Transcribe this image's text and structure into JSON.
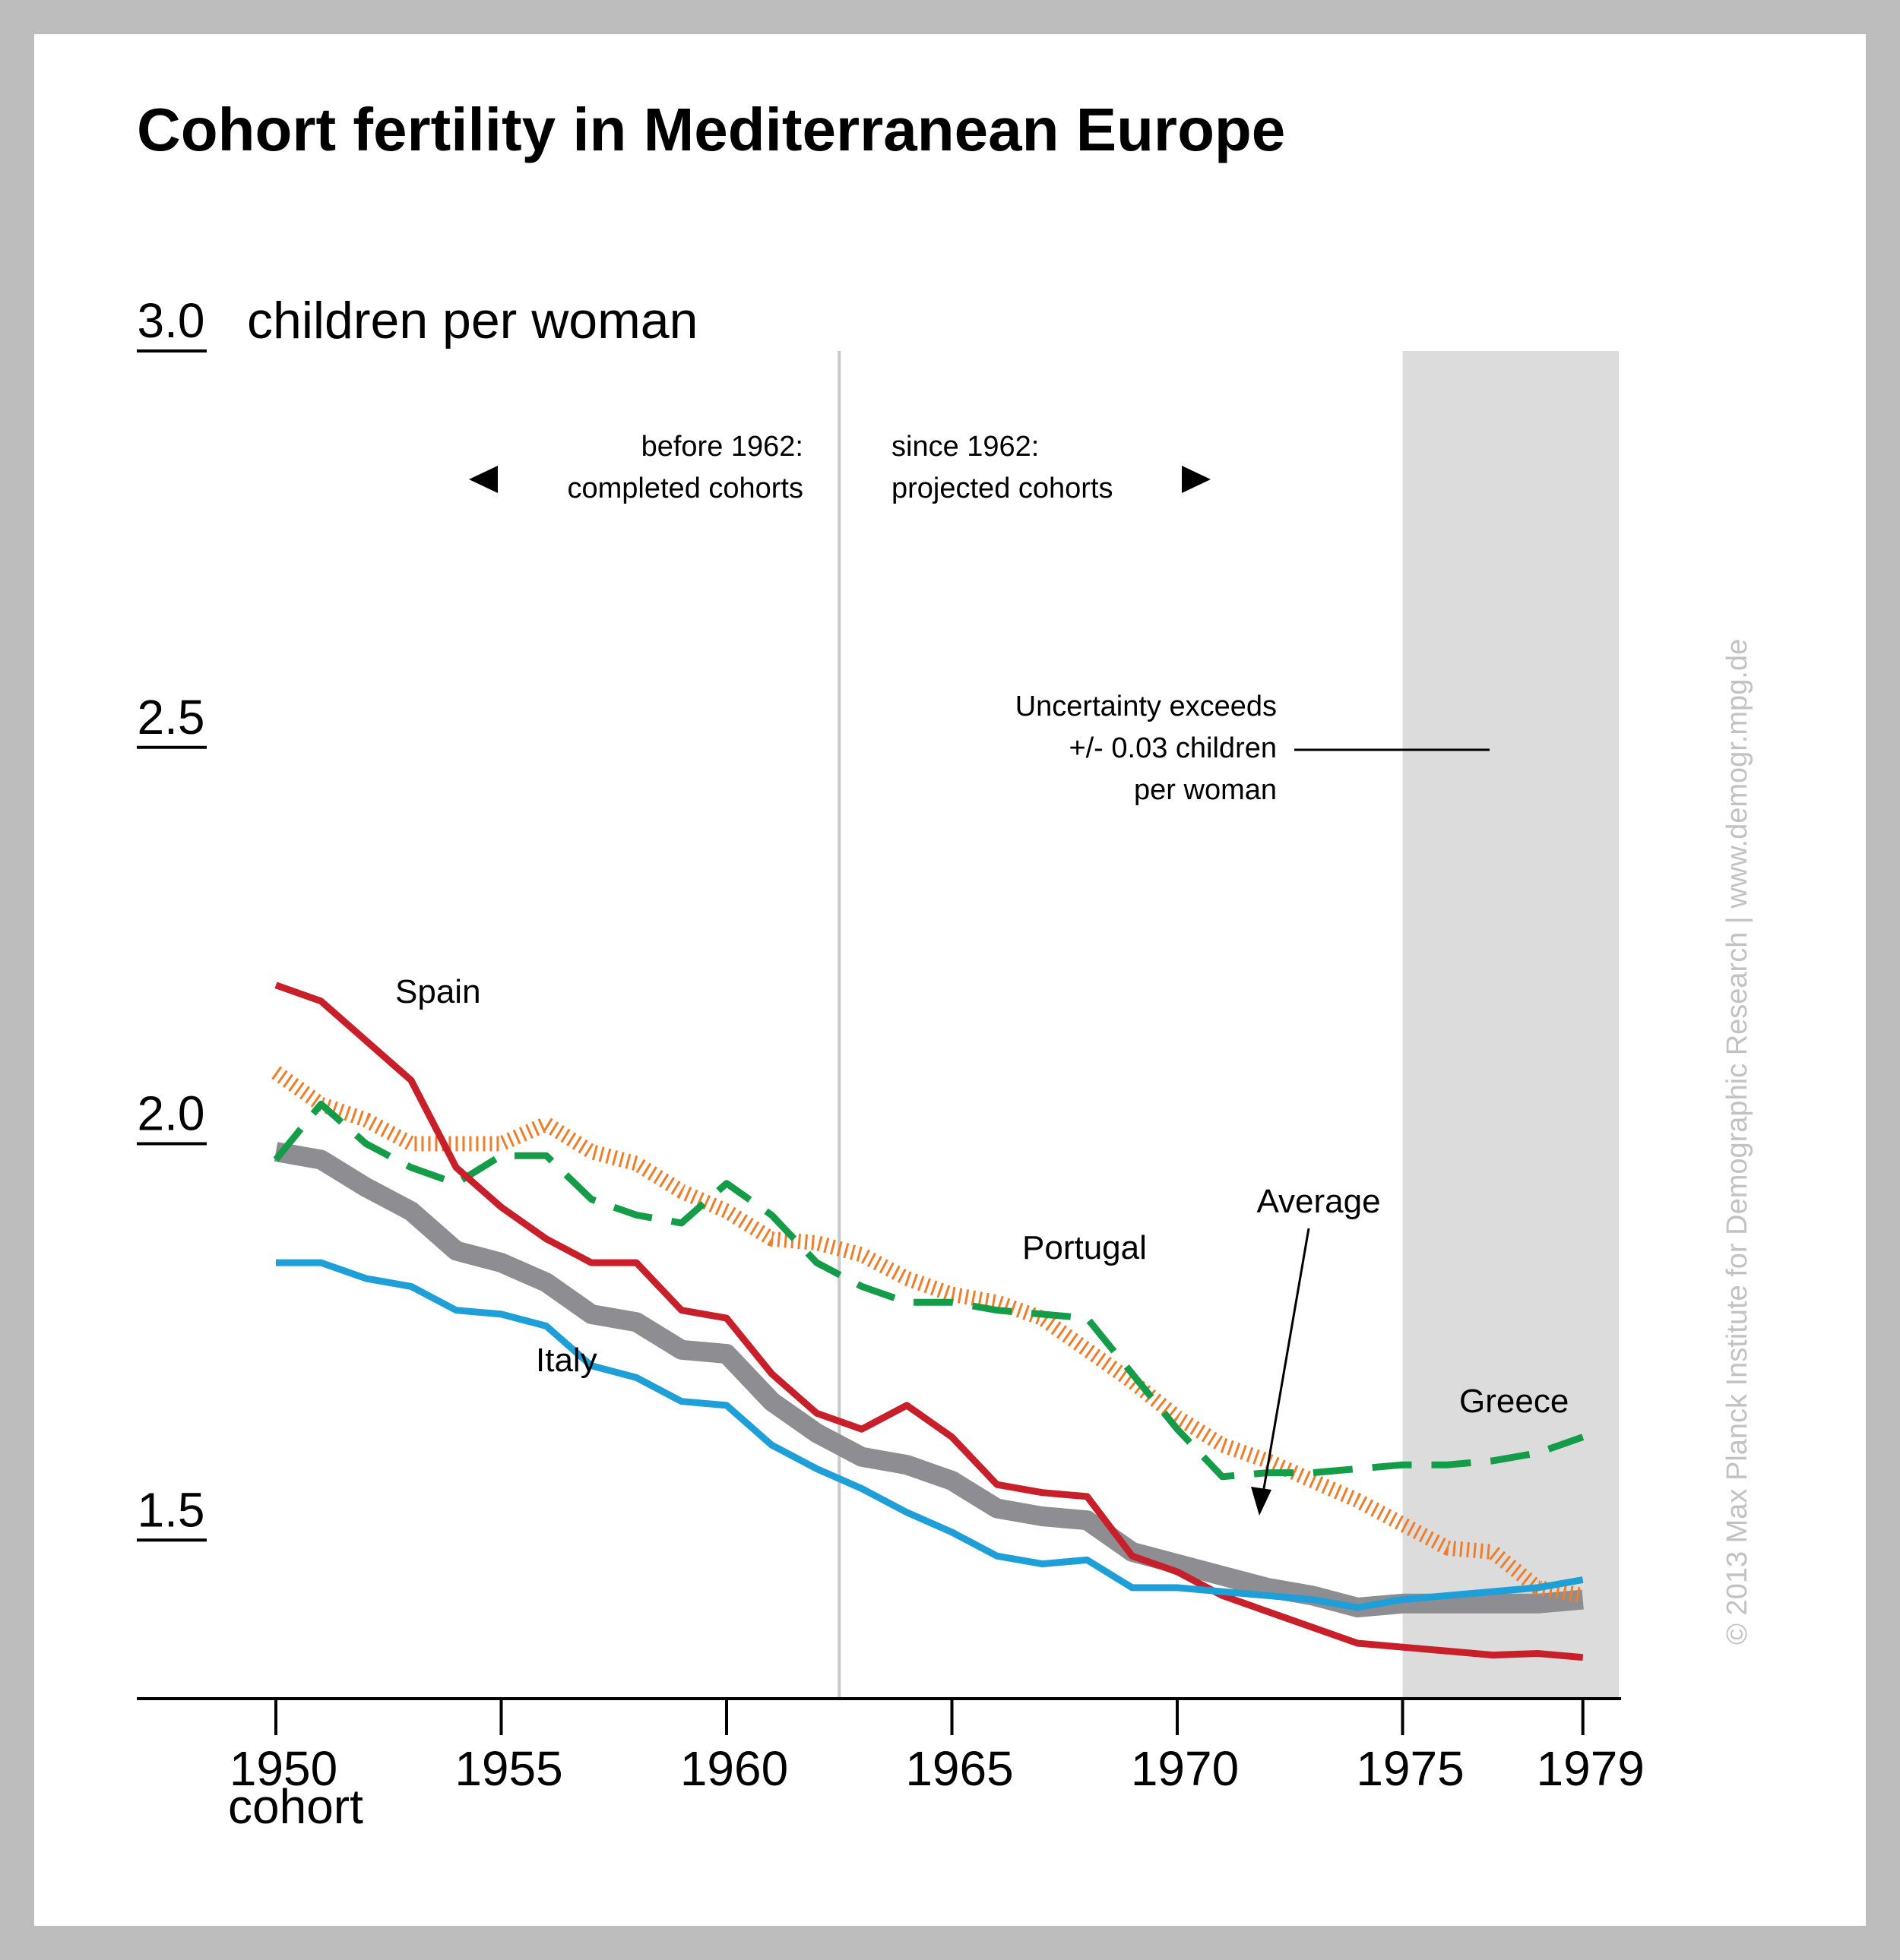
{
  "chart_data": {
    "type": "line",
    "title": "Cohort fertility in Mediterranean Europe",
    "ylabel": "children per woman",
    "xlabel": "cohort",
    "ylim": [
      1.3,
      3.0
    ],
    "xlim": [
      1947,
      1979
    ],
    "yticks": [
      {
        "value": 3.0,
        "label": "3.0"
      },
      {
        "value": 2.5,
        "label": "2.5"
      },
      {
        "value": 2.0,
        "label": "2.0"
      },
      {
        "value": 1.5,
        "label": "1.5"
      }
    ],
    "xticks": [
      {
        "value": 1950,
        "label": "1950"
      },
      {
        "value": 1955,
        "label": "1955"
      },
      {
        "value": 1960,
        "label": "1960"
      },
      {
        "value": 1965,
        "label": "1965"
      },
      {
        "value": 1970,
        "label": "1970"
      },
      {
        "value": 1975,
        "label": "1975"
      },
      {
        "value": 1979,
        "label": "1979"
      }
    ],
    "grid": false,
    "divider_year": 1962.5,
    "uncertainty_band": {
      "from": 1975,
      "to": 1979,
      "color": "#dcdcdc"
    },
    "annotations": {
      "before": {
        "line1": "before 1962:",
        "line2": "completed cohorts"
      },
      "since": {
        "line1": "since 1962:",
        "line2": "projected cohorts"
      },
      "uncertainty": {
        "line1": "Uncertainty exceeds",
        "line2": "+/- 0.03 children",
        "line3": "per woman"
      },
      "average_label": "Average"
    },
    "credit": "© 2013 Max Planck Institute for Demographic Research | www.demogr.mpg.de",
    "x": [
      1950,
      1951,
      1952,
      1953,
      1954,
      1955,
      1956,
      1957,
      1958,
      1959,
      1960,
      1961,
      1962,
      1963,
      1964,
      1965,
      1966,
      1967,
      1968,
      1969,
      1970,
      1971,
      1972,
      1973,
      1974,
      1975,
      1976,
      1977,
      1978,
      1979
    ],
    "series": [
      {
        "name": "Spain",
        "color": "#c8202a",
        "style": "solid",
        "values": [
          2.2,
          2.18,
          2.13,
          2.08,
          1.97,
          1.92,
          1.88,
          1.85,
          1.85,
          1.79,
          1.78,
          1.71,
          1.66,
          1.64,
          1.67,
          1.63,
          1.57,
          1.56,
          1.555,
          1.48,
          1.46,
          1.43,
          1.41,
          1.39,
          1.37,
          1.365,
          1.36,
          1.355,
          1.357,
          1.352
        ]
      },
      {
        "name": "Italy",
        "color": "#1f9fd8",
        "style": "solid",
        "values": [
          1.85,
          1.85,
          1.83,
          1.82,
          1.79,
          1.785,
          1.77,
          1.72,
          1.705,
          1.675,
          1.67,
          1.62,
          1.59,
          1.565,
          1.535,
          1.51,
          1.48,
          1.47,
          1.475,
          1.44,
          1.44,
          1.435,
          1.43,
          1.425,
          1.415,
          1.425,
          1.43,
          1.435,
          1.44,
          1.45
        ]
      },
      {
        "name": "Portugal",
        "color": "#ef7d2a",
        "style": "hatched",
        "values": [
          2.09,
          2.05,
          2.03,
          2.0,
          2.0,
          2.0,
          2.025,
          1.99,
          1.975,
          1.94,
          1.915,
          1.88,
          1.875,
          1.86,
          1.83,
          1.81,
          1.8,
          1.78,
          1.74,
          1.7,
          1.655,
          1.62,
          1.6,
          1.575,
          1.55,
          1.52,
          1.49,
          1.485,
          1.44,
          1.43
        ]
      },
      {
        "name": "Greece",
        "color": "#159c48",
        "style": "dashed",
        "values": [
          1.98,
          2.05,
          2.0,
          1.97,
          1.95,
          1.985,
          1.985,
          1.93,
          1.91,
          1.9,
          1.95,
          1.91,
          1.85,
          1.82,
          1.8,
          1.8,
          1.79,
          1.785,
          1.78,
          1.71,
          1.64,
          1.58,
          1.585,
          1.585,
          1.59,
          1.595,
          1.595,
          1.6,
          1.61,
          1.63
        ]
      },
      {
        "name": "Average",
        "color": "#8e8e92",
        "style": "thick",
        "values": [
          1.99,
          1.98,
          1.945,
          1.915,
          1.865,
          1.85,
          1.825,
          1.785,
          1.775,
          1.74,
          1.735,
          1.675,
          1.635,
          1.605,
          1.595,
          1.575,
          1.54,
          1.53,
          1.525,
          1.485,
          1.47,
          1.455,
          1.44,
          1.43,
          1.415,
          1.42,
          1.42,
          1.42,
          1.42,
          1.425
        ]
      }
    ]
  }
}
